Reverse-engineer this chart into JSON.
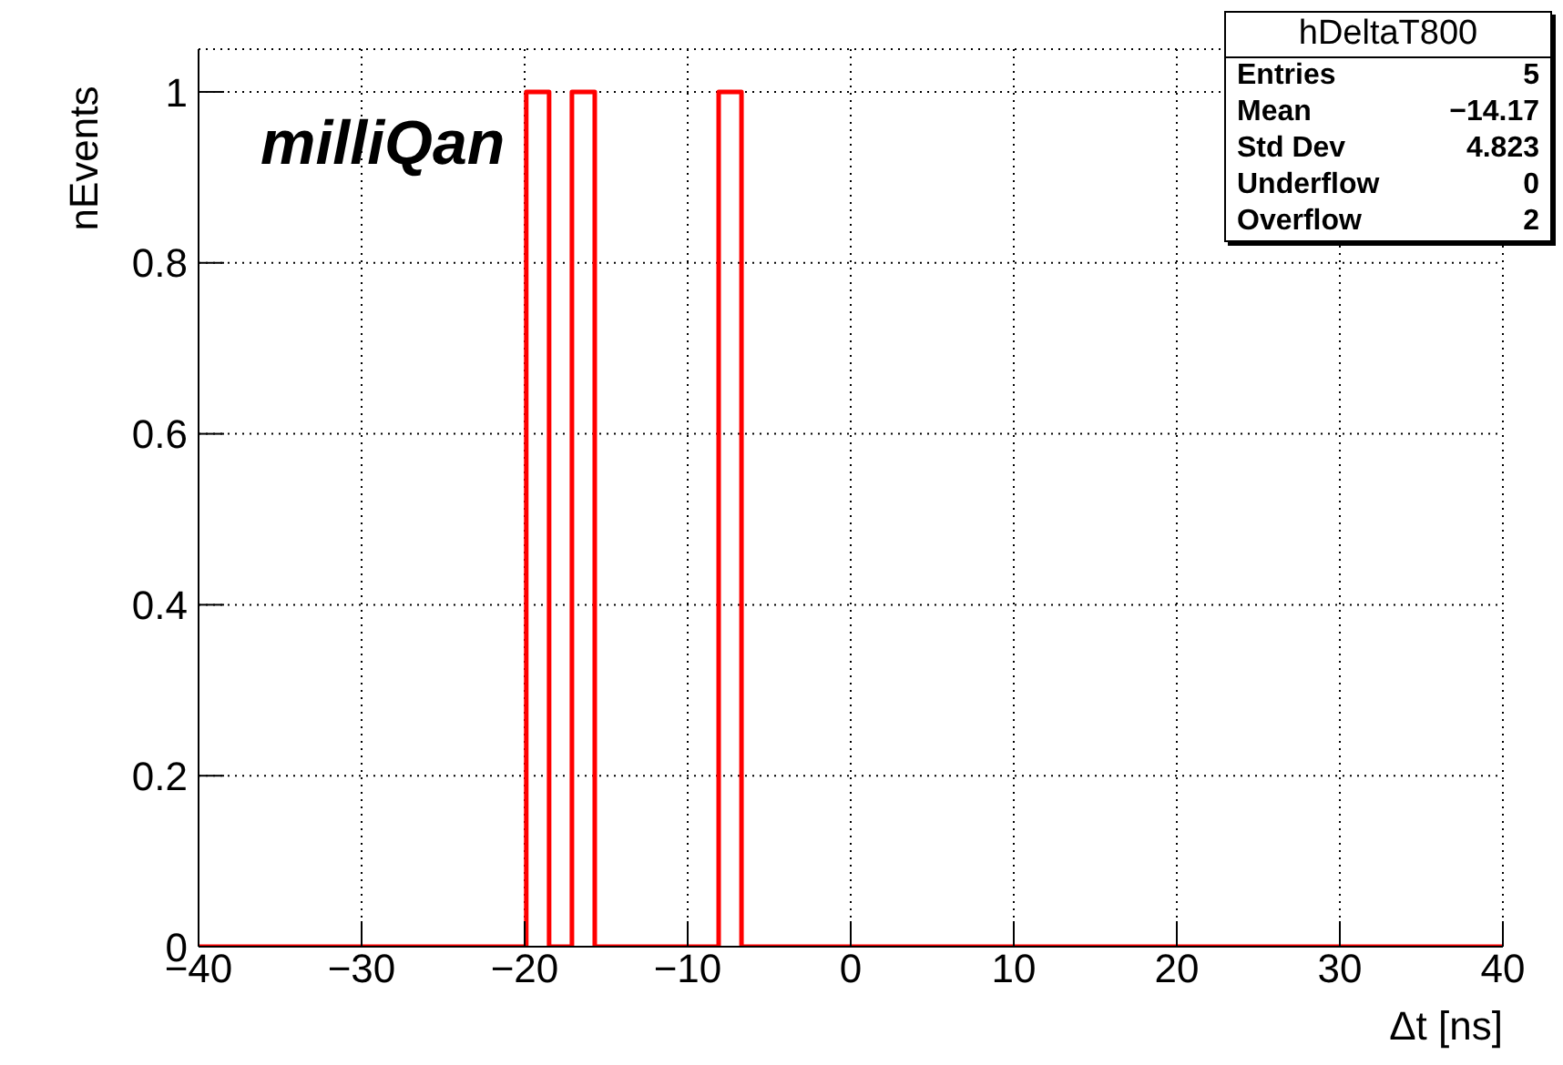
{
  "chart_data": {
    "type": "histogram",
    "xlabel": "Δt [ns]",
    "ylabel": "nEvents",
    "bins": [
      -40,
      -19.9,
      -18.5,
      -17.1,
      -15.7,
      -8.1,
      -6.7,
      40
    ],
    "values": [
      0,
      1,
      0,
      1,
      0,
      1,
      0
    ],
    "color": "#ff0000",
    "xlim": [
      -40,
      40
    ],
    "xticks": [
      -40,
      -30,
      -20,
      -10,
      0,
      10,
      20,
      30,
      40
    ],
    "ylim": [
      0,
      1.05
    ],
    "yticks": [
      0,
      0.2,
      0.4,
      0.6,
      0.8,
      1
    ],
    "grid": true,
    "annotations": [
      "milliQan",
      "hDeltaT800",
      "Entries 5",
      "Mean −14.17",
      "Std Dev 4.823",
      "Underflow 0",
      "Overflow 2"
    ]
  }
}
